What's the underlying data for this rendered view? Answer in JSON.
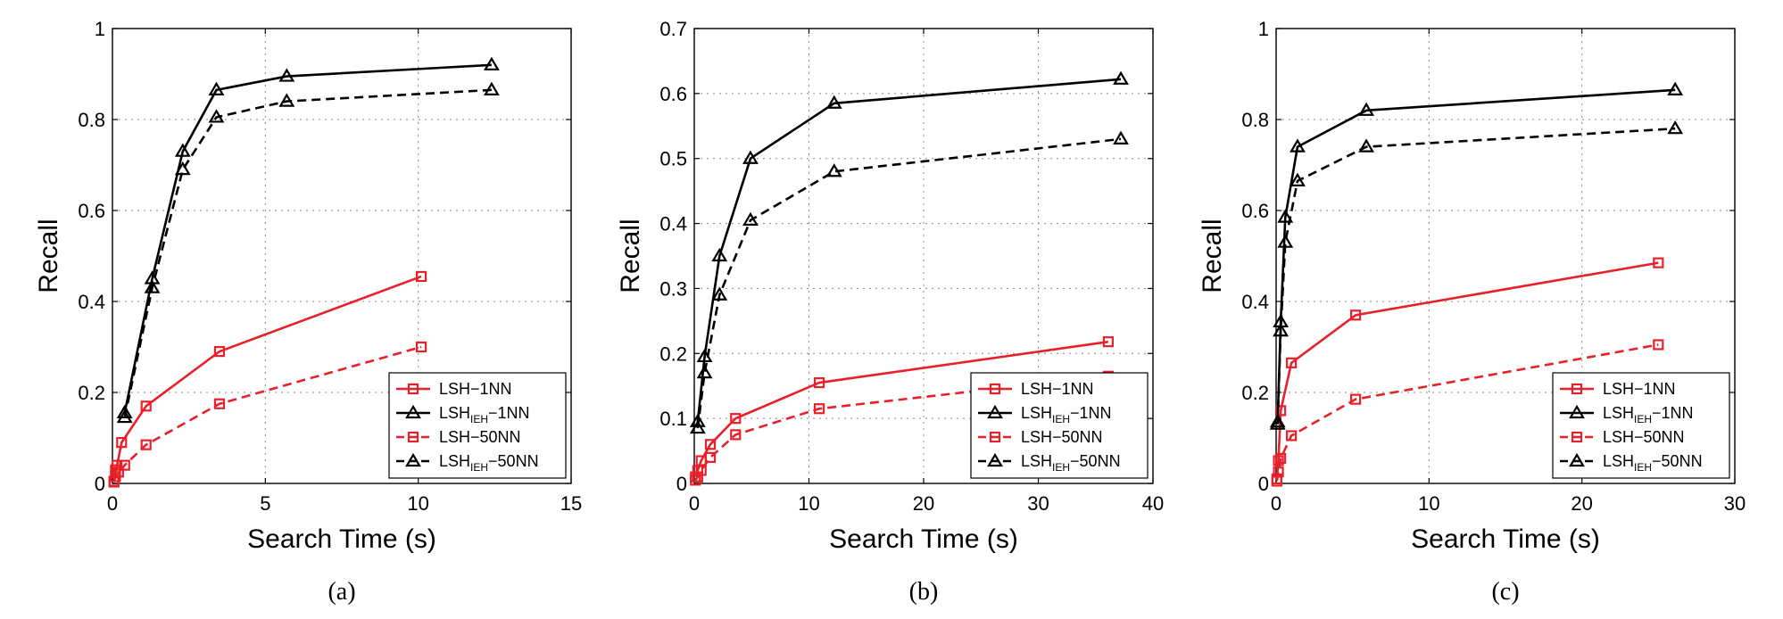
{
  "chart_data": [
    {
      "type": "line",
      "caption": "(a)",
      "xlabel": "Search Time (s)",
      "ylabel": "Recall",
      "xlim": [
        0,
        15
      ],
      "ylim": [
        0,
        1
      ],
      "xticks": [
        0,
        5,
        10,
        15
      ],
      "yticks": [
        0,
        0.2,
        0.4,
        0.6,
        0.8,
        1
      ],
      "xtick_labels": [
        "0",
        "5",
        "10",
        "15"
      ],
      "ytick_labels": [
        "0",
        "0.2",
        "0.4",
        "0.6",
        "0.8",
        "1"
      ],
      "grid": true,
      "legend_position": "bottom-right",
      "series": [
        {
          "name": "LSH−1NN",
          "legend_main": "LSH",
          "legend_sub": "",
          "legend_suffix": "−1NN",
          "color": "#e8202a",
          "dash": "solid",
          "marker": "square",
          "x": [
            0.05,
            0.1,
            0.15,
            0.3,
            1.1,
            3.5,
            10.1
          ],
          "y": [
            0.005,
            0.03,
            0.04,
            0.09,
            0.17,
            0.29,
            0.455
          ]
        },
        {
          "name": "LSH_IEH−1NN",
          "legend_main": "LSH",
          "legend_sub": "IEH",
          "legend_suffix": "−1NN",
          "color": "#000000",
          "dash": "solid",
          "marker": "triangle",
          "x": [
            0.4,
            1.3,
            2.3,
            3.4,
            5.7,
            12.4
          ],
          "y": [
            0.155,
            0.45,
            0.73,
            0.865,
            0.895,
            0.92
          ]
        },
        {
          "name": "LSH−50NN",
          "legend_main": "LSH",
          "legend_sub": "",
          "legend_suffix": "−50NN",
          "color": "#e8202a",
          "dash": "dashed",
          "marker": "square",
          "x": [
            0.05,
            0.1,
            0.2,
            0.4,
            1.1,
            3.5,
            10.1
          ],
          "y": [
            0.003,
            0.015,
            0.025,
            0.04,
            0.085,
            0.175,
            0.3
          ]
        },
        {
          "name": "LSH_IEH−50NN",
          "legend_main": "LSH",
          "legend_sub": "IEH",
          "legend_suffix": "−50NN",
          "color": "#000000",
          "dash": "dashed",
          "marker": "triangle",
          "x": [
            0.4,
            1.3,
            2.3,
            3.4,
            5.7,
            12.4
          ],
          "y": [
            0.145,
            0.43,
            0.69,
            0.805,
            0.84,
            0.865
          ]
        }
      ]
    },
    {
      "type": "line",
      "caption": "(b)",
      "xlabel": "Search Time (s)",
      "ylabel": "Recall",
      "xlim": [
        0,
        40
      ],
      "ylim": [
        0,
        0.7
      ],
      "xticks": [
        0,
        10,
        20,
        30,
        40
      ],
      "yticks": [
        0,
        0.1,
        0.2,
        0.3,
        0.4,
        0.5,
        0.6,
        0.7
      ],
      "xtick_labels": [
        "0",
        "10",
        "20",
        "30",
        "40"
      ],
      "ytick_labels": [
        "0",
        "0.1",
        "0.2",
        "0.3",
        "0.4",
        "0.5",
        "0.6",
        "0.7"
      ],
      "grid": true,
      "legend_position": "bottom-right",
      "series": [
        {
          "name": "LSH−1NN",
          "legend_main": "LSH",
          "legend_sub": "",
          "legend_suffix": "−1NN",
          "color": "#e8202a",
          "dash": "solid",
          "marker": "square",
          "x": [
            0.1,
            0.3,
            0.6,
            1.4,
            3.6,
            10.9,
            36.1
          ],
          "y": [
            0.01,
            0.02,
            0.035,
            0.06,
            0.1,
            0.155,
            0.218
          ]
        },
        {
          "name": "LSH_IEH−1NN",
          "legend_main": "LSH",
          "legend_sub": "IEH",
          "legend_suffix": "−1NN",
          "color": "#000000",
          "dash": "solid",
          "marker": "triangle",
          "x": [
            0.3,
            0.9,
            2.2,
            4.9,
            12.2,
            37.2
          ],
          "y": [
            0.095,
            0.195,
            0.35,
            0.5,
            0.585,
            0.622
          ]
        },
        {
          "name": "LSH−50NN",
          "legend_main": "LSH",
          "legend_sub": "",
          "legend_suffix": "−50NN",
          "color": "#e8202a",
          "dash": "dashed",
          "marker": "square",
          "x": [
            0.1,
            0.3,
            0.6,
            1.4,
            3.6,
            10.9,
            36.1
          ],
          "y": [
            0.005,
            0.01,
            0.02,
            0.04,
            0.075,
            0.115,
            0.165
          ]
        },
        {
          "name": "LSH_IEH−50NN",
          "legend_main": "LSH",
          "legend_sub": "IEH",
          "legend_suffix": "−50NN",
          "color": "#000000",
          "dash": "dashed",
          "marker": "triangle",
          "x": [
            0.3,
            0.9,
            2.2,
            4.9,
            12.2,
            37.2
          ],
          "y": [
            0.085,
            0.17,
            0.29,
            0.405,
            0.48,
            0.53
          ]
        }
      ]
    },
    {
      "type": "line",
      "caption": "(c)",
      "xlabel": "Search Time (s)",
      "ylabel": "Recall",
      "xlim": [
        0,
        30
      ],
      "ylim": [
        0,
        1
      ],
      "xticks": [
        0,
        10,
        20,
        30
      ],
      "yticks": [
        0,
        0.2,
        0.4,
        0.6,
        0.8,
        1
      ],
      "xtick_labels": [
        "0",
        "10",
        "20",
        "30"
      ],
      "ytick_labels": [
        "0",
        "0.2",
        "0.4",
        "0.6",
        "0.8",
        "1"
      ],
      "grid": true,
      "legend_position": "bottom-right",
      "series": [
        {
          "name": "LSH−1NN",
          "legend_main": "LSH",
          "legend_sub": "",
          "legend_suffix": "−1NN",
          "color": "#e8202a",
          "dash": "solid",
          "marker": "square",
          "x": [
            0.05,
            0.15,
            0.3,
            1.0,
            5.2,
            25.0
          ],
          "y": [
            0.01,
            0.05,
            0.16,
            0.265,
            0.37,
            0.485
          ]
        },
        {
          "name": "LSH_IEH−1NN",
          "legend_main": "LSH",
          "legend_sub": "IEH",
          "legend_suffix": "−1NN",
          "color": "#000000",
          "dash": "solid",
          "marker": "triangle",
          "x": [
            0.1,
            0.3,
            0.6,
            1.4,
            5.9,
            26.1
          ],
          "y": [
            0.135,
            0.355,
            0.585,
            0.74,
            0.82,
            0.865
          ]
        },
        {
          "name": "LSH−50NN",
          "legend_main": "LSH",
          "legend_sub": "",
          "legend_suffix": "−50NN",
          "color": "#e8202a",
          "dash": "dashed",
          "marker": "square",
          "x": [
            0.05,
            0.15,
            0.3,
            1.0,
            5.2,
            25.0
          ],
          "y": [
            0.005,
            0.025,
            0.055,
            0.105,
            0.185,
            0.305
          ]
        },
        {
          "name": "LSH_IEH−50NN",
          "legend_main": "LSH",
          "legend_sub": "IEH",
          "legend_suffix": "−50NN",
          "color": "#000000",
          "dash": "dashed",
          "marker": "triangle",
          "x": [
            0.1,
            0.3,
            0.6,
            1.4,
            5.9,
            26.1
          ],
          "y": [
            0.13,
            0.335,
            0.53,
            0.665,
            0.74,
            0.78
          ]
        }
      ]
    }
  ]
}
